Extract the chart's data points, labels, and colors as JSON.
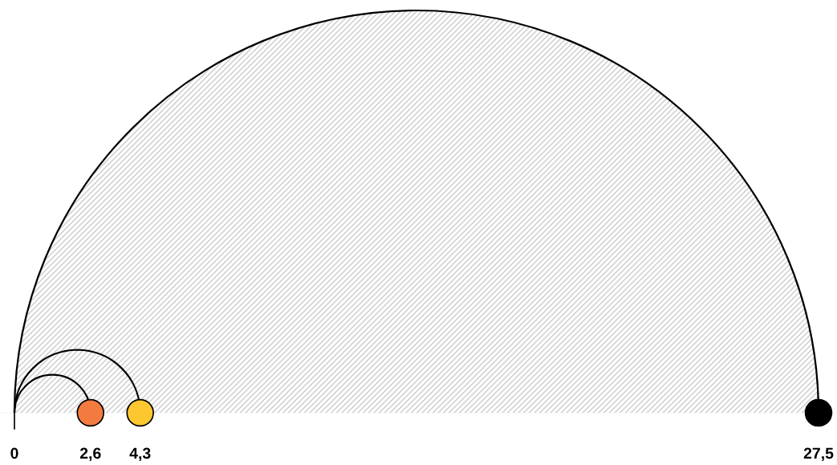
{
  "chart_data": {
    "type": "other",
    "values": [
      2.6,
      4.3,
      27.5
    ],
    "value_labels": [
      "2,6",
      "4,3",
      "27,5"
    ],
    "colors": [
      "#f47b3f",
      "#fdc82f",
      "#000000"
    ],
    "annotations": [
      "0"
    ]
  }
}
